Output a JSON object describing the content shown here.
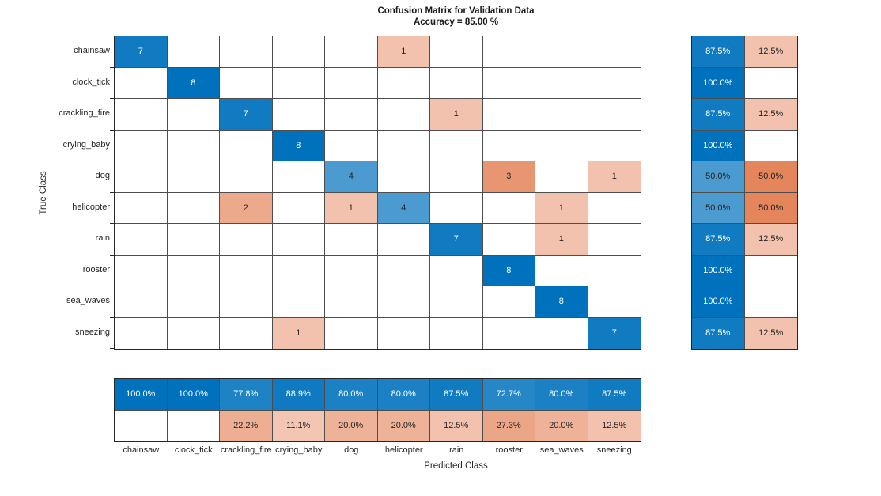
{
  "figure": {
    "title": "Confusion Matrix for Validation Data",
    "subtitle": "Accuracy = 85.00 %",
    "xlabel": "Predicted Class",
    "ylabel": "True Class"
  },
  "chart_data": {
    "type": "heatmap",
    "chart_kind": "confusion-matrix",
    "title": "Confusion Matrix for Validation Data",
    "subtitle": "Accuracy = 85.00 %",
    "xlabel": "Predicted Class",
    "ylabel": "True Class",
    "classes": [
      "chainsaw",
      "clock_tick",
      "crackling_fire",
      "crying_baby",
      "dog",
      "helicopter",
      "rain",
      "rooster",
      "sea_waves",
      "sneezing"
    ],
    "matrix": [
      [
        7,
        0,
        0,
        0,
        0,
        1,
        0,
        0,
        0,
        0
      ],
      [
        0,
        8,
        0,
        0,
        0,
        0,
        0,
        0,
        0,
        0
      ],
      [
        0,
        0,
        7,
        0,
        0,
        0,
        1,
        0,
        0,
        0
      ],
      [
        0,
        0,
        0,
        8,
        0,
        0,
        0,
        0,
        0,
        0
      ],
      [
        0,
        0,
        0,
        0,
        4,
        0,
        0,
        3,
        0,
        1
      ],
      [
        0,
        0,
        2,
        0,
        1,
        4,
        0,
        0,
        1,
        0
      ],
      [
        0,
        0,
        0,
        0,
        0,
        0,
        7,
        0,
        1,
        0
      ],
      [
        0,
        0,
        0,
        0,
        0,
        0,
        0,
        8,
        0,
        0
      ],
      [
        0,
        0,
        0,
        0,
        0,
        0,
        0,
        0,
        8,
        0
      ],
      [
        0,
        0,
        0,
        1,
        0,
        0,
        0,
        0,
        0,
        7
      ]
    ],
    "max_count": 8,
    "row_summary": {
      "correct": [
        "87.5%",
        "100.0%",
        "87.5%",
        "100.0%",
        "50.0%",
        "50.0%",
        "87.5%",
        "100.0%",
        "100.0%",
        "87.5%"
      ],
      "incorrect": [
        "12.5%",
        "",
        "12.5%",
        "",
        "50.0%",
        "50.0%",
        "12.5%",
        "",
        "",
        "12.5%"
      ]
    },
    "col_summary": {
      "correct": [
        "100.0%",
        "100.0%",
        "77.8%",
        "88.9%",
        "80.0%",
        "80.0%",
        "87.5%",
        "72.7%",
        "80.0%",
        "87.5%"
      ],
      "incorrect": [
        "",
        "",
        "22.2%",
        "11.1%",
        "20.0%",
        "20.0%",
        "12.5%",
        "27.3%",
        "20.0%",
        "12.5%"
      ]
    },
    "colors": {
      "diagonal": "#0072BD",
      "off_diagonal": "#D95319",
      "empty": "#FFFFFF",
      "grid_line": "#4D4D4D",
      "text_dark": "#262626",
      "text_light": "#FFFFFF"
    },
    "layout": {
      "legend_position": "none",
      "grid": "on"
    }
  }
}
